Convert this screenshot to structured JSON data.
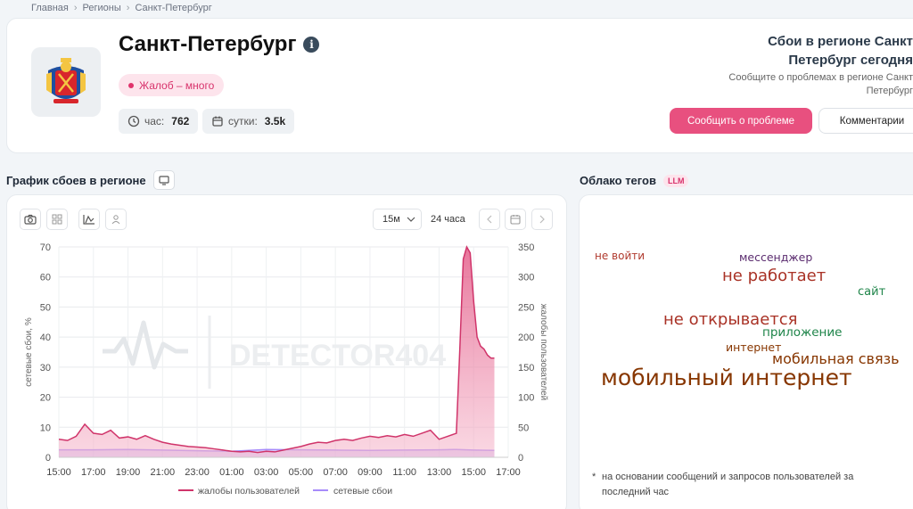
{
  "breadcrumb": [
    "Главная",
    "Регионы",
    "Санкт-Петербург"
  ],
  "region": {
    "title": "Санкт-Петербург",
    "info_icon": "i",
    "badge": "Жалоб – много",
    "stats": [
      {
        "label": "час:",
        "value": "762",
        "icon": "clock-icon"
      },
      {
        "label": "сутки:",
        "value": "3.5k",
        "icon": "calendar-icon"
      }
    ]
  },
  "right_panel": {
    "heading_line1": "Сбои в регионе Санкт",
    "heading_line2": "Петербург сегодня",
    "sub_line1": "Сообщите о проблемах в регионе Санкт",
    "sub_line2": "Петербург",
    "report_button": "Сообщить о проблеме",
    "comments_button": "Комментарии"
  },
  "chart_section": {
    "title": "График сбоев в регионе",
    "range_value": "15м",
    "period": "24 часа"
  },
  "tags_section": {
    "title": "Облако тегов",
    "badge": "LLM",
    "tags": [
      {
        "text": "не войти",
        "color": "#b03a2e"
      },
      {
        "text": "мессенджер",
        "color": "#5b2c6f"
      },
      {
        "text": "не работает",
        "color": "#a93226"
      },
      {
        "text": "сайт",
        "color": "#1e8449"
      },
      {
        "text": "не открывается",
        "color": "#a93226"
      },
      {
        "text": "приложение",
        "color": "#1e8449"
      },
      {
        "text": "интернет",
        "color": "#873600"
      },
      {
        "text": "мобильная связь",
        "color": "#873600"
      },
      {
        "text": "мобильный интернет",
        "color": "#873600"
      }
    ],
    "footnote_star": "*",
    "footnote": "на основании сообщений и запросов пользователей за последний час"
  },
  "watermark": "DETECTOR404",
  "colors": {
    "accent": "#e8507f",
    "complaints": "#d0346a",
    "outages": "#a78bfa"
  },
  "chart_data": {
    "type": "area",
    "x_ticks": [
      "15:00",
      "17:00",
      "19:00",
      "21:00",
      "23:00",
      "01:00",
      "03:00",
      "05:00",
      "07:00",
      "09:00",
      "11:00",
      "13:00",
      "15:00",
      "17:00"
    ],
    "ylabel_left": "сетевые сбои, %",
    "ylabel_right": "жалобы пользователей",
    "y_left_ticks": [
      0,
      10,
      20,
      30,
      40,
      50,
      60,
      70
    ],
    "y_right_ticks": [
      0,
      50,
      100,
      150,
      200,
      250,
      300,
      350
    ],
    "ylim_left": [
      0,
      70
    ],
    "ylim_right": [
      0,
      350
    ],
    "series": [
      {
        "name": "жалобы пользователей",
        "axis": "right",
        "x_hours": [
          0,
          0.5,
          1,
          1.5,
          2,
          2.5,
          3,
          3.5,
          4,
          4.5,
          5,
          5.5,
          6,
          6.5,
          7,
          7.5,
          8,
          8.5,
          9,
          9.5,
          10,
          10.5,
          11,
          11.5,
          12,
          12.5,
          13,
          13.5,
          14,
          14.5,
          15,
          15.5,
          16,
          16.5,
          17,
          17.5,
          18,
          18.5,
          19,
          19.5,
          20,
          20.5,
          21,
          21.5,
          22,
          22.5,
          23,
          23.2,
          23.4,
          23.6,
          23.8,
          24,
          24.2,
          24.4,
          24.6,
          24.8,
          25,
          25.2
        ],
        "values": [
          30,
          28,
          35,
          55,
          40,
          38,
          45,
          32,
          34,
          30,
          36,
          30,
          25,
          22,
          20,
          18,
          17,
          16,
          14,
          12,
          10,
          9,
          10,
          8,
          10,
          9,
          12,
          15,
          18,
          22,
          25,
          24,
          28,
          30,
          28,
          32,
          35,
          33,
          36,
          34,
          38,
          35,
          40,
          45,
          30,
          35,
          40,
          180,
          330,
          350,
          340,
          260,
          200,
          185,
          180,
          170,
          165,
          165
        ]
      },
      {
        "name": "сетевые сбои",
        "axis": "left",
        "x_hours": [
          0,
          2,
          4,
          6,
          8,
          10,
          12,
          14,
          16,
          18,
          20,
          22,
          23,
          24,
          25.2
        ],
        "values": [
          2.5,
          2.5,
          2.6,
          2.4,
          2.2,
          2.0,
          2.6,
          2.5,
          2.4,
          2.3,
          2.4,
          2.5,
          2.6,
          2.4,
          2.3
        ]
      }
    ],
    "legend": "bottom",
    "grid": true
  }
}
